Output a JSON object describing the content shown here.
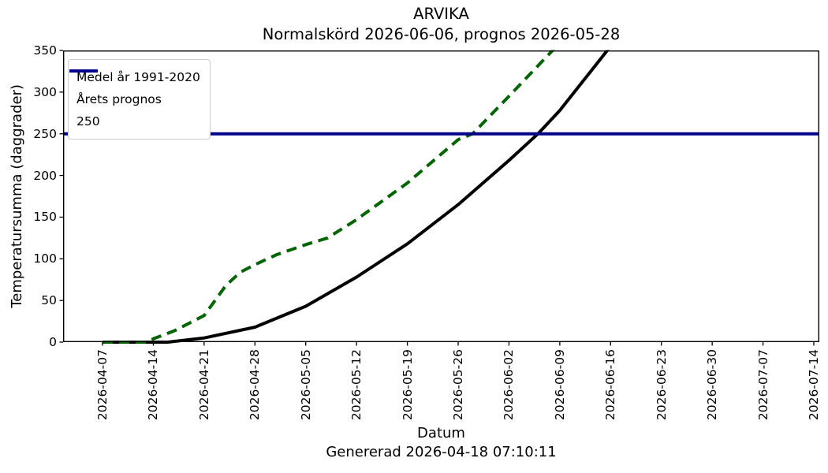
{
  "figure": {
    "title_line1": "ARVIKA",
    "title_line2": "Normalskörd 2026-06-06, prognos 2026-05-28",
    "footer_generated": "Genererad 2026-04-18 07:10:11"
  },
  "axes": {
    "x_label": "Datum",
    "y_label": "Temperatursumma (daggrader)",
    "y_ticks": [
      "0",
      "50",
      "100",
      "150",
      "200",
      "250",
      "300",
      "350"
    ],
    "x_ticks": [
      "2026-04-07",
      "2026-04-14",
      "2026-04-21",
      "2026-04-28",
      "2026-05-05",
      "2026-05-12",
      "2026-05-19",
      "2026-05-26",
      "2026-06-02",
      "2026-06-09",
      "2026-06-16",
      "2026-06-23",
      "2026-06-30",
      "2026-07-07",
      "2026-07-14"
    ]
  },
  "legend": {
    "items": [
      {
        "label": "Medel år 1991-2020",
        "color": "#000000",
        "dash": "solid"
      },
      {
        "label": "Årets prognos",
        "color": "#006400",
        "dash": "dashed"
      },
      {
        "label": "250",
        "color": "#00008b",
        "dash": "solid"
      }
    ]
  },
  "chart_data": {
    "type": "line",
    "title": "ARVIKA",
    "subtitle": "Normalskörd 2026-06-06, prognos 2026-05-28",
    "xlabel": "Datum",
    "ylabel": "Temperatursumma (daggrader)",
    "ylim": [
      0,
      350
    ],
    "grid": false,
    "legend_position": "upper left",
    "x_tick_labels": [
      "2026-04-07",
      "2026-04-14",
      "2026-04-21",
      "2026-04-28",
      "2026-05-05",
      "2026-05-12",
      "2026-05-19",
      "2026-05-26",
      "2026-06-02",
      "2026-06-09",
      "2026-06-16",
      "2026-06-23",
      "2026-06-30",
      "2026-07-07",
      "2026-07-14"
    ],
    "series": [
      {
        "name": "Medel år 1991-2020",
        "type": "line",
        "style": "solid",
        "color": "#000000",
        "points": [
          [
            "2026-04-07",
            0
          ],
          [
            "2026-04-14",
            0
          ],
          [
            "2026-04-16",
            0
          ],
          [
            "2026-04-21",
            5
          ],
          [
            "2026-04-28",
            18
          ],
          [
            "2026-05-05",
            43
          ],
          [
            "2026-05-12",
            78
          ],
          [
            "2026-05-19",
            118
          ],
          [
            "2026-05-26",
            165
          ],
          [
            "2026-06-02",
            218
          ],
          [
            "2026-06-06",
            250
          ],
          [
            "2026-06-09",
            278
          ],
          [
            "2026-06-16",
            355
          ]
        ]
      },
      {
        "name": "Årets prognos",
        "type": "line",
        "style": "dashed",
        "color": "#006400",
        "points": [
          [
            "2026-04-07",
            0
          ],
          [
            "2026-04-13",
            0
          ],
          [
            "2026-04-14",
            4
          ],
          [
            "2026-04-17",
            14
          ],
          [
            "2026-04-21",
            32
          ],
          [
            "2026-04-24",
            68
          ],
          [
            "2026-04-26",
            84
          ],
          [
            "2026-04-28",
            93
          ],
          [
            "2026-05-01",
            105
          ],
          [
            "2026-05-05",
            117
          ],
          [
            "2026-05-08",
            125
          ],
          [
            "2026-05-12",
            147
          ],
          [
            "2026-05-19",
            191
          ],
          [
            "2026-05-26",
            243
          ],
          [
            "2026-05-28",
            250
          ],
          [
            "2026-06-02",
            295
          ],
          [
            "2026-06-08",
            350
          ],
          [
            "2026-06-10",
            368
          ]
        ]
      },
      {
        "name": "250",
        "type": "hline",
        "y": 250,
        "style": "solid",
        "color": "#00008b"
      }
    ]
  }
}
